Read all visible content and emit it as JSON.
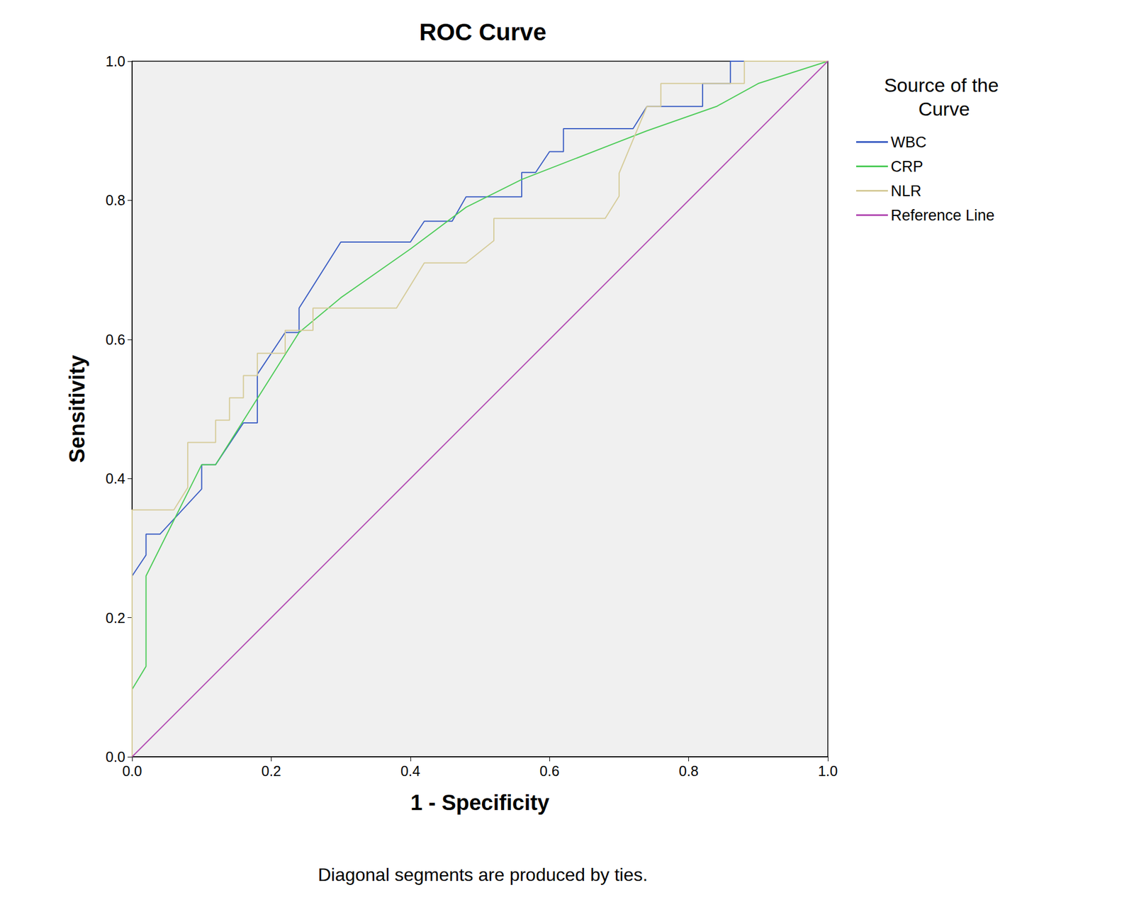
{
  "chart_data": {
    "type": "line",
    "title": "ROC Curve",
    "x_label": "1 - Specificity",
    "y_label": "Sensitivity",
    "legend_title": "Source of the Curve",
    "note": "Diagonal segments are produced by ties.",
    "xlim": [
      0,
      1
    ],
    "ylim": [
      0,
      1
    ],
    "xticks": [
      {
        "value": 0,
        "label": "0.0"
      },
      0.2,
      0.4,
      0.6,
      0.8,
      {
        "value": 1,
        "label": "1.0"
      }
    ],
    "yticks": [
      {
        "value": 0,
        "label": "0.0"
      },
      0.2,
      0.4,
      0.6,
      0.8,
      {
        "value": 1,
        "label": "1.0"
      }
    ],
    "grid": false,
    "legend": "right",
    "series": [
      {
        "name": "WBC",
        "color": "#3d5fc4",
        "x": [
          0,
          0,
          0.02,
          0.02,
          0.04,
          0.1,
          0.1,
          0.12,
          0.16,
          0.18,
          0.18,
          0.22,
          0.24,
          0.24,
          0.3,
          0.4,
          0.42,
          0.46,
          0.48,
          0.56,
          0.56,
          0.58,
          0.6,
          0.62,
          0.62,
          0.72,
          0.74,
          0.82,
          0.82,
          0.86,
          0.86,
          1
        ],
        "values": [
          0,
          0.26,
          0.29,
          0.32,
          0.32,
          0.385,
          0.42,
          0.42,
          0.48,
          0.48,
          0.55,
          0.61,
          0.61,
          0.645,
          0.74,
          0.74,
          0.77,
          0.77,
          0.805,
          0.805,
          0.84,
          0.84,
          0.87,
          0.87,
          0.903,
          0.903,
          0.935,
          0.935,
          0.968,
          0.968,
          1,
          1
        ]
      },
      {
        "name": "CRP",
        "color": "#4fcc5a",
        "x": [
          0,
          0,
          0.02,
          0.02,
          0.1,
          0.12,
          0.24,
          0.3,
          0.4,
          0.48,
          0.56,
          0.74,
          0.84,
          0.9,
          1
        ],
        "values": [
          0,
          0.097,
          0.13,
          0.26,
          0.42,
          0.42,
          0.61,
          0.66,
          0.73,
          0.79,
          0.83,
          0.9,
          0.935,
          0.968,
          1
        ]
      },
      {
        "name": "NLR",
        "color": "#d6cc9a",
        "x": [
          0,
          0,
          0.06,
          0.08,
          0.08,
          0.12,
          0.12,
          0.14,
          0.14,
          0.16,
          0.16,
          0.18,
          0.18,
          0.22,
          0.22,
          0.26,
          0.26,
          0.38,
          0.42,
          0.48,
          0.52,
          0.52,
          0.68,
          0.7,
          0.7,
          0.74,
          0.76,
          0.76,
          0.88,
          0.88,
          1
        ],
        "values": [
          0,
          0.355,
          0.355,
          0.387,
          0.452,
          0.452,
          0.484,
          0.484,
          0.516,
          0.516,
          0.548,
          0.548,
          0.58,
          0.58,
          0.613,
          0.613,
          0.645,
          0.645,
          0.71,
          0.71,
          0.742,
          0.774,
          0.774,
          0.806,
          0.839,
          0.935,
          0.935,
          0.968,
          0.968,
          1,
          1
        ]
      },
      {
        "name": "Reference Line",
        "color": "#b44fb4",
        "x": [
          0,
          1
        ],
        "values": [
          0,
          1
        ]
      }
    ]
  }
}
